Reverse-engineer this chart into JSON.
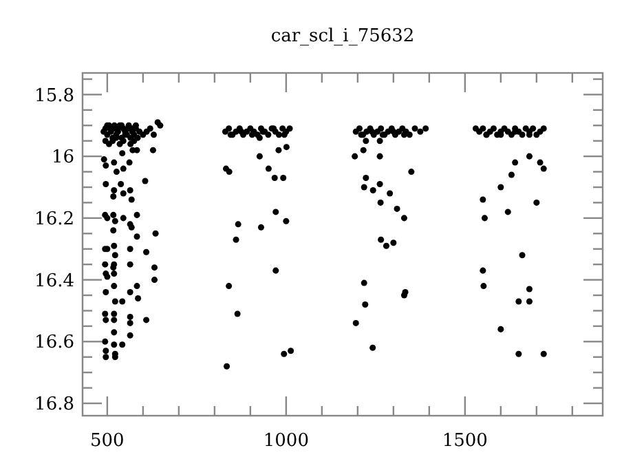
{
  "chart_data": {
    "type": "scatter",
    "title": "car_scl_i_75632",
    "marker": "circle",
    "xlim": [
      431,
      1885
    ],
    "ylim": [
      16.84,
      15.73
    ],
    "xticks": [
      {
        "value": 500,
        "label": "500"
      },
      {
        "value": 600,
        "label": null
      },
      {
        "value": 700,
        "label": null
      },
      {
        "value": 800,
        "label": null
      },
      {
        "value": 900,
        "label": null
      },
      {
        "value": 1000,
        "label": "1000"
      },
      {
        "value": 1100,
        "label": null
      },
      {
        "value": 1200,
        "label": null
      },
      {
        "value": 1300,
        "label": null
      },
      {
        "value": 1400,
        "label": null
      },
      {
        "value": 1500,
        "label": "1500"
      },
      {
        "value": 1600,
        "label": null
      },
      {
        "value": 1700,
        "label": null
      },
      {
        "value": 1800,
        "label": null
      }
    ],
    "yticks": [
      {
        "value": 15.75,
        "label": null
      },
      {
        "value": 15.8,
        "label": "15.8"
      },
      {
        "value": 15.85,
        "label": null
      },
      {
        "value": 15.9,
        "label": null
      },
      {
        "value": 15.95,
        "label": null
      },
      {
        "value": 16,
        "label": "16"
      },
      {
        "value": 16.05,
        "label": null
      },
      {
        "value": 16.1,
        "label": null
      },
      {
        "value": 16.15,
        "label": null
      },
      {
        "value": 16.2,
        "label": "16.2"
      },
      {
        "value": 16.25,
        "label": null
      },
      {
        "value": 16.3,
        "label": null
      },
      {
        "value": 16.35,
        "label": null
      },
      {
        "value": 16.4,
        "label": "16.4"
      },
      {
        "value": 16.45,
        "label": null
      },
      {
        "value": 16.5,
        "label": null
      },
      {
        "value": 16.55,
        "label": null
      },
      {
        "value": 16.6,
        "label": "16.6"
      },
      {
        "value": 16.65,
        "label": null
      },
      {
        "value": 16.7,
        "label": null
      },
      {
        "value": 16.75,
        "label": null
      },
      {
        "value": 16.8,
        "label": "16.8"
      }
    ],
    "series": [
      {
        "color": "#000000",
        "x": [
          490,
          495,
          500,
          505,
          510,
          515,
          520,
          525,
          530,
          535,
          540,
          545,
          550,
          560,
          565,
          570,
          575,
          580,
          590,
          600,
          610,
          620,
          630,
          641,
          648,
          495,
          505,
          515,
          525,
          535,
          545,
          555,
          565,
          575,
          585,
          500,
          510,
          520,
          530,
          540,
          550,
          560,
          570,
          580,
          496,
          491,
          519,
          542,
          571,
          583,
          628,
          526,
          545,
          562,
          496,
          519,
          538,
          545,
          564,
          568,
          517,
          606,
          494,
          500,
          517,
          522,
          545,
          564,
          568,
          583,
          517,
          583,
          635,
          494,
          500,
          519,
          522,
          564,
          609,
          494,
          496,
          517,
          519,
          564,
          632,
          632,
          500,
          519,
          496,
          519,
          564,
          583,
          586,
          522,
          542,
          494,
          519,
          564,
          609,
          496,
          519,
          564,
          564,
          519,
          494,
          496,
          496,
          519,
          522,
          522,
          542,
          830,
          840,
          850,
          860,
          870,
          880,
          890,
          900,
          910,
          920,
          930,
          940,
          950,
          960,
          970,
          980,
          990,
          1000,
          1010,
          845,
          875,
          905,
          935,
          965,
          995,
          926,
          979,
          1001,
          926,
          832,
          841,
          951,
          968,
          992,
          971,
          1000,
          866,
          930,
          860,
          971,
          840,
          864,
          994,
          1013,
          834,
          1195,
          1205,
          1215,
          1225,
          1235,
          1245,
          1255,
          1265,
          1275,
          1285,
          1295,
          1305,
          1315,
          1325,
          1335,
          1345,
          1360,
          1375,
          1390,
          1210,
          1240,
          1270,
          1300,
          1330,
          1223,
          1262,
          1192,
          1216,
          1262,
          1223,
          1262,
          1218,
          1243,
          1264,
          1265,
          1218,
          1221,
          1195,
          1242,
          1290,
          1310,
          1330,
          1300,
          1330,
          1333,
          1280,
          1350,
          1530,
          1540,
          1550,
          1560,
          1570,
          1580,
          1590,
          1600,
          1610,
          1620,
          1630,
          1640,
          1650,
          1660,
          1670,
          1680,
          1690,
          1700,
          1710,
          1720,
          1560,
          1600,
          1640,
          1680,
          1550,
          1555,
          1550,
          1552,
          1600,
          1620,
          1650,
          1680,
          1700,
          1660,
          1650,
          1720,
          1680,
          1710,
          1720,
          1640,
          1680,
          1600,
          1630
        ],
        "values": [
          15.92,
          15.91,
          15.93,
          15.9,
          15.92,
          15.94,
          15.91,
          15.93,
          15.92,
          15.9,
          15.94,
          15.91,
          15.93,
          15.91,
          15.94,
          15.92,
          15.93,
          15.91,
          15.92,
          15.93,
          15.92,
          15.91,
          15.93,
          15.89,
          15.9,
          15.95,
          15.96,
          15.95,
          15.94,
          15.96,
          15.95,
          15.93,
          15.96,
          15.95,
          15.94,
          15.9,
          15.91,
          15.9,
          15.91,
          15.9,
          15.92,
          15.9,
          15.91,
          15.9,
          16.03,
          16.01,
          16.02,
          15.99,
          15.98,
          15.98,
          15.98,
          16.05,
          16.04,
          16.02,
          16.09,
          16.11,
          16.09,
          16.12,
          16.11,
          16.14,
          16.13,
          16.08,
          16.19,
          16.2,
          16.19,
          16.21,
          16.2,
          16.22,
          16.23,
          16.19,
          16.24,
          16.26,
          16.25,
          16.3,
          16.3,
          16.29,
          16.32,
          16.3,
          16.31,
          16.35,
          16.38,
          16.36,
          16.35,
          16.35,
          16.36,
          16.4,
          16.39,
          16.38,
          16.44,
          16.42,
          16.44,
          16.42,
          16.46,
          16.47,
          16.47,
          16.51,
          16.51,
          16.52,
          16.53,
          16.53,
          16.53,
          16.54,
          16.58,
          16.57,
          16.6,
          16.63,
          16.65,
          16.61,
          16.64,
          16.65,
          16.61,
          15.92,
          15.91,
          15.93,
          15.92,
          15.91,
          15.93,
          15.92,
          15.91,
          15.92,
          15.93,
          15.91,
          15.92,
          15.93,
          15.91,
          15.92,
          15.93,
          15.91,
          15.92,
          15.91,
          15.93,
          15.92,
          15.93,
          15.92,
          15.91,
          15.93,
          15.94,
          15.98,
          15.97,
          16.0,
          16.04,
          16.05,
          16.04,
          16.07,
          16.07,
          16.18,
          16.21,
          16.22,
          16.23,
          16.27,
          16.37,
          16.42,
          16.51,
          16.64,
          16.63,
          16.68,
          15.92,
          15.91,
          15.93,
          15.92,
          15.91,
          15.93,
          15.92,
          15.91,
          15.93,
          15.92,
          15.91,
          15.93,
          15.92,
          15.91,
          15.92,
          15.93,
          15.91,
          15.92,
          15.91,
          15.93,
          15.92,
          15.93,
          15.92,
          15.93,
          15.95,
          15.95,
          16.0,
          15.98,
          16.0,
          16.07,
          16.09,
          16.1,
          16.11,
          16.15,
          16.27,
          16.41,
          16.48,
          16.54,
          16.62,
          16.12,
          16.17,
          16.2,
          16.28,
          16.45,
          16.44,
          16.29,
          16.05,
          15.91,
          15.92,
          15.91,
          15.93,
          15.92,
          15.91,
          15.93,
          15.92,
          15.91,
          15.92,
          15.93,
          15.91,
          15.92,
          15.93,
          15.91,
          15.92,
          15.91,
          15.93,
          15.92,
          15.91,
          15.93,
          15.93,
          15.92,
          15.93,
          16.14,
          16.2,
          16.37,
          16.42,
          16.56,
          16.18,
          16.47,
          16.43,
          16.15,
          16.32,
          16.64,
          16.64,
          16.47,
          16.02,
          16.04,
          16.02,
          16.0,
          16.1,
          16.06
        ]
      }
    ]
  }
}
